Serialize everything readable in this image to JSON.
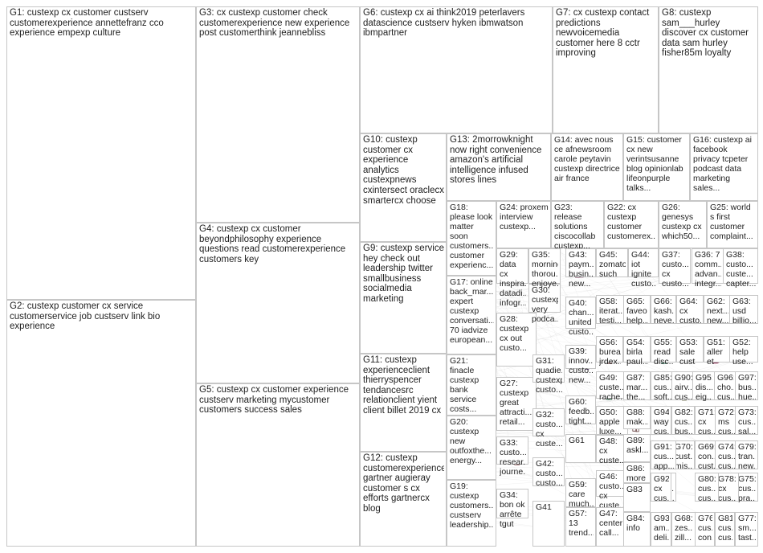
{
  "groups": [
    {
      "id": "G1",
      "label": "G1: custexp cx customer custserv customerexperience annettefranz cco experience empexp culture",
      "color": "#1f2a6b"
    },
    {
      "id": "G2",
      "label": "G2: custexp customer cx service customerservice job custserv link bio experience",
      "color": "#3a78c4"
    },
    {
      "id": "G3",
      "label": "G3: cx custexp customer check customerexperience new experience post customerthink jeannebliss",
      "color": "#1f7a3a"
    },
    {
      "id": "G4",
      "label": "G4: custexp cx customer beyondphilosophy experience questions read customerexperience customers key",
      "color": "#2e8b3e"
    },
    {
      "id": "G5",
      "label": "G5: custexp cx customer experience custserv marketing mycustomer customers success sales",
      "color": "#b01818"
    },
    {
      "id": "G6",
      "label": "G6: custexp cx ai think2019 peterlavers datascience custserv hyken ibmwatson ibmpartner",
      "color": "#d79a2a"
    },
    {
      "id": "G7",
      "label": "G7: cx custexp contact predictions newvoicemedia customer here 8 cctr improving",
      "color": "#d4a020"
    },
    {
      "id": "G8",
      "label": "G8: custexp sam___hurley discover cx customer data sam hurley fisher85m loyalty",
      "color": "#9ab020"
    },
    {
      "id": "G9",
      "label": "G9: custexp service hey check out leadership twitter smallbusiness socialmedia marketing",
      "color": "#c04a8a"
    },
    {
      "id": "G10",
      "label": "G10: custexp customer cx experience analytics custexpnews cxintersect oraclecx smartercx choose",
      "color": "#6a3aa0"
    },
    {
      "id": "G11",
      "label": "G11: custexp experienceclient thierryspencer tendancesrc relationclient yient client billet 2019 cx",
      "color": "#8a5a2a"
    },
    {
      "id": "G12",
      "label": "G12: custexp customerexperience gartner augieray customer s cx efforts gartnercx blog",
      "color": "#3a8a8a"
    },
    {
      "id": "G13",
      "label": "G13: 2morrowknight now right convenience amazon's artificial intelligence infused stores lines",
      "color": "#7a4a9a"
    },
    {
      "id": "G14",
      "label": "G14: avec nous ce afnewsroom carole peytavin custexp directrice air france",
      "color": "#2a6aaa"
    },
    {
      "id": "G15",
      "label": "G15: customer cx new verintsusanne blog opinionlab lifeonpurple talks...",
      "color": "#9a2a6a"
    },
    {
      "id": "G16",
      "label": "G16: custexp ai facebook privacy tcpeter podcast data marketing sales...",
      "color": "#5a8a2a"
    },
    {
      "id": "G17",
      "label": "G17: online back_mar... expert custexp conversati... 70 iadvize european...",
      "color": "#aa6a2a"
    },
    {
      "id": "G18",
      "label": "G18: please look matter soon customers... customer experienc...",
      "color": "#4a4aaa"
    },
    {
      "id": "G19",
      "label": "G19: custexp customers... custserv leadership...",
      "color": "#2a8a5a"
    },
    {
      "id": "G20",
      "label": "G20: custexp new outfoxthe... energy...",
      "color": "#aa2a2a"
    },
    {
      "id": "G21",
      "label": "G21: finacle custexp bank service costs...",
      "color": "#2a5aaa"
    },
    {
      "id": "G22",
      "label": "G22: cx custexp customer customerex...",
      "color": "#6a6a2a"
    },
    {
      "id": "G23",
      "label": "G23: release solutions ciscocollab custexp...",
      "color": "#aa4a2a"
    },
    {
      "id": "G24",
      "label": "G24: proxem interview custexp...",
      "color": "#2a2a8a"
    },
    {
      "id": "G25",
      "label": "G25: world s first customer complaint...",
      "color": "#8a2a8a"
    },
    {
      "id": "G26",
      "label": "G26: genesys custexp cx which50...",
      "color": "#2a8a8a"
    },
    {
      "id": "G27",
      "label": "G27: custexp great attracti... retail...",
      "color": "#6a2aaa"
    },
    {
      "id": "G28",
      "label": "G28: custexp cx out custo...",
      "color": "#2a6a2a"
    },
    {
      "id": "G29",
      "label": "G29: data cx inspira... datadi... infogr...",
      "color": "#aa2a6a"
    },
    {
      "id": "G30",
      "label": "G30: custexp very podca...",
      "color": "#3a3a3a"
    },
    {
      "id": "G31",
      "label": "G31: quadie... custexp custo...",
      "color": "#aa8a2a"
    },
    {
      "id": "G32",
      "label": "G32: custo... cx custe...",
      "color": "#4a7aaa"
    },
    {
      "id": "G33",
      "label": "G33: custo... resear... journe...",
      "color": "#7a2a2a"
    },
    {
      "id": "G34",
      "label": "G34: bon ok arrête tgut",
      "color": "#2a7a7a"
    },
    {
      "id": "G35",
      "label": "G35: morning thorou... enjoye...",
      "color": "#7a7a2a"
    },
    {
      "id": "G36",
      "label": "G36: 7 comm... advan... integr...",
      "color": "#2a4a8a"
    },
    {
      "id": "G37",
      "label": "G37: custo... cx custo...",
      "color": "#8a4a2a"
    },
    {
      "id": "G38",
      "label": "G38: custo... custe... capter...",
      "color": "#4a8a4a"
    },
    {
      "id": "G39",
      "label": "G39: innov... custo... new...",
      "color": "#6a4a8a"
    },
    {
      "id": "G40",
      "label": "G40: chan... united custo...",
      "color": "#8a6a4a"
    },
    {
      "id": "G41",
      "label": "G41",
      "color": "#4a4a4a"
    },
    {
      "id": "G42",
      "label": "G42: custo... custo...",
      "color": "#2a6a4a"
    },
    {
      "id": "G43",
      "label": "G43: paym... busin... new...",
      "color": "#6a2a4a"
    },
    {
      "id": "G44",
      "label": "G44: iot ignite custo...",
      "color": "#4a6a2a"
    },
    {
      "id": "G45",
      "label": "G45: zomato such",
      "color": "#aa3a3a"
    },
    {
      "id": "G46",
      "label": "G46: custo... cx custe...",
      "color": "#3a5a8a"
    },
    {
      "id": "G47",
      "label": "G47: center call...",
      "color": "#5a3a7a"
    },
    {
      "id": "G48",
      "label": "G48: cx custe...",
      "color": "#7a5a3a"
    },
    {
      "id": "G49",
      "label": "G49: custe... rache...",
      "color": "#3a7a5a"
    },
    {
      "id": "G50",
      "label": "G50: apple luxe...",
      "color": "#5a5a5a"
    },
    {
      "id": "G51",
      "label": "G51: aller et",
      "color": "#8a3a5a"
    },
    {
      "id": "G52",
      "label": "G52: help use...",
      "color": "#3a3a8a"
    },
    {
      "id": "G53",
      "label": "G53: sale cust",
      "color": "#5a8a3a"
    },
    {
      "id": "G54",
      "label": "G54: birla paul...",
      "color": "#8a5a3a"
    },
    {
      "id": "G55",
      "label": "G55: read disc...",
      "color": "#3a8a6a"
    },
    {
      "id": "G56",
      "label": "G56: burea... jrdex...",
      "color": "#6a3a3a"
    },
    {
      "id": "G57",
      "label": "G57: 13 trend...",
      "color": "#3a6a6a"
    },
    {
      "id": "G58",
      "label": "G58: iterat... testi...",
      "color": "#6a6a3a"
    },
    {
      "id": "G59",
      "label": "G59: care much...",
      "color": "#4a3a6a"
    },
    {
      "id": "G60",
      "label": "G60: feedb... tight...",
      "color": "#6a4a3a"
    },
    {
      "id": "G61",
      "label": "G61",
      "color": "#3a4a3a"
    },
    {
      "id": "G62",
      "label": "G62: next... new...",
      "color": "#4a3a4a"
    },
    {
      "id": "G63",
      "label": "G63: usd billio...",
      "color": "#3a3a5a"
    },
    {
      "id": "G64",
      "label": "G64: cx custo...",
      "color": "#5a3a3a"
    },
    {
      "id": "G65",
      "label": "G65: faveo help...",
      "color": "#3a5a3a"
    },
    {
      "id": "G66",
      "label": "G66: kash... neve...",
      "color": "#5a5a3a"
    },
    {
      "id": "G67",
      "label": "G67: imit... bes...",
      "color": "#3a5a5a"
    },
    {
      "id": "G68",
      "label": "G68: zes... zill...",
      "color": "#5a3a5a"
    },
    {
      "id": "G69",
      "label": "G69: con... cust...",
      "color": "#4a5a6a"
    },
    {
      "id": "G70",
      "label": "G70: cust... mis...",
      "color": "#6a5a4a"
    },
    {
      "id": "G71",
      "label": "G71: cx cus...",
      "color": "#4a6a5a"
    },
    {
      "id": "G72",
      "label": "G72: ms cus...",
      "color": "#5a4a6a"
    },
    {
      "id": "G73",
      "label": "G73: cus... sal...",
      "color": "#6a4a5a"
    },
    {
      "id": "G74",
      "label": "G74: cus... cus...",
      "color": "#5a6a4a"
    },
    {
      "id": "G75",
      "label": "G75: cus... pra...",
      "color": "#4a4a6a"
    },
    {
      "id": "G76",
      "label": "G76: cus... con...",
      "color": "#6a4a4a"
    },
    {
      "id": "G77",
      "label": "G77: sm... tast...",
      "color": "#4a6a4a"
    },
    {
      "id": "G78",
      "label": "G78: cx cus...",
      "color": "#6a6a4a"
    },
    {
      "id": "G79",
      "label": "G79: tran... new...",
      "color": "#4a6a6a"
    },
    {
      "id": "G80",
      "label": "G80: cus... cus...",
      "color": "#6a4a6a"
    },
    {
      "id": "G81",
      "label": "G81: cus... cus...",
      "color": "#5a5a6a"
    },
    {
      "id": "G82",
      "label": "G82: cus... bus...",
      "color": "#6a5a5a"
    },
    {
      "id": "G83",
      "label": "G83",
      "color": "#5a6a5a"
    },
    {
      "id": "G84",
      "label": "G84: info",
      "color": "#5a6a6a"
    },
    {
      "id": "G85",
      "label": "G85: cus... soft...",
      "color": "#6a5a6a"
    },
    {
      "id": "G86",
      "label": "G86: more",
      "color": "#6a6a5a"
    },
    {
      "id": "G87",
      "label": "G87: mar... the...",
      "color": "#5a5a7a"
    },
    {
      "id": "G88",
      "label": "G88: mak...",
      "color": "#7a5a5a"
    },
    {
      "id": "G89",
      "label": "G89: askl...",
      "color": "#5a7a5a"
    },
    {
      "id": "G90",
      "label": "G90: airv... cus...",
      "color": "#7a7a5a"
    },
    {
      "id": "G91",
      "label": "G91: cus... app...",
      "color": "#5a7a7a"
    },
    {
      "id": "G92",
      "label": "G92: cx cus...",
      "color": "#7a5a7a"
    },
    {
      "id": "G93",
      "label": "G93: am... deli...",
      "color": "#6a6a7a"
    },
    {
      "id": "G94",
      "label": "G94: way cus...",
      "color": "#7a6a6a"
    },
    {
      "id": "G95",
      "label": "G95: dis... eig...",
      "color": "#6a7a6a"
    },
    {
      "id": "G96",
      "label": "G96: cho... cus...",
      "color": "#7a7a6a"
    },
    {
      "id": "G97",
      "label": "G97: bus... hue...",
      "color": "#6a7a7a"
    }
  ]
}
